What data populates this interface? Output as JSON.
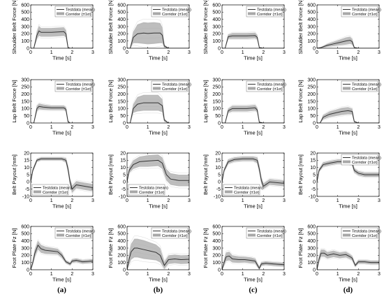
{
  "colors": {
    "mean": "#333333",
    "corridor": "#a8a8a8",
    "individual": "#d9d9d9"
  },
  "legend": {
    "mean": "Testdata (mean)",
    "corridor": "Corridor (±1σ)"
  },
  "column_labels": [
    "(a)",
    "(b)",
    "(c)",
    "(d)"
  ],
  "chart_data": [
    {
      "type": "line",
      "row": 0,
      "col": 0,
      "xlabel": "Time [s]",
      "ylabel": "Shoulder Belt Force [N]",
      "xlim": [
        0,
        3
      ],
      "ylim": [
        0,
        600
      ],
      "xticks": [
        0,
        1,
        2,
        3
      ],
      "yticks": [
        0,
        100,
        200,
        300,
        400,
        500,
        600
      ],
      "legend_position": "top-right",
      "x": [
        0,
        0.15,
        0.3,
        0.4,
        0.5,
        0.7,
        1.0,
        1.3,
        1.6,
        1.7,
        1.8,
        1.9,
        2.2,
        3
      ],
      "mean": [
        0,
        0,
        180,
        240,
        220,
        220,
        220,
        225,
        230,
        200,
        10,
        0,
        0,
        0
      ],
      "sd": [
        0,
        0,
        50,
        70,
        60,
        60,
        60,
        60,
        60,
        50,
        10,
        0,
        0,
        0
      ]
    },
    {
      "type": "line",
      "row": 0,
      "col": 1,
      "xlabel": "Time [s]",
      "ylabel": "Shoulder Belt Force [N]",
      "xlim": [
        0,
        3
      ],
      "ylim": [
        0,
        600
      ],
      "xticks": [
        0,
        1,
        2,
        3
      ],
      "yticks": [
        0,
        100,
        200,
        300,
        400,
        500,
        600
      ],
      "legend_position": "top-right",
      "x": [
        0,
        0.15,
        0.3,
        0.5,
        0.8,
        1.0,
        1.3,
        1.6,
        1.7,
        1.8,
        2.0,
        3
      ],
      "mean": [
        0,
        0,
        150,
        200,
        210,
        205,
        210,
        210,
        180,
        30,
        0,
        0
      ],
      "sd": [
        0,
        0,
        80,
        130,
        150,
        150,
        150,
        140,
        110,
        20,
        0,
        0
      ]
    },
    {
      "type": "line",
      "row": 0,
      "col": 2,
      "xlabel": "Time [s]",
      "ylabel": "Shoulder Belt Force [N]",
      "xlim": [
        0,
        3
      ],
      "ylim": [
        0,
        600
      ],
      "xticks": [
        0,
        1,
        2,
        3
      ],
      "yticks": [
        0,
        100,
        200,
        300,
        400,
        500,
        600
      ],
      "legend_position": "top-right",
      "x": [
        0,
        0.15,
        0.3,
        0.5,
        0.8,
        1.2,
        1.6,
        1.7,
        1.8,
        2.0,
        3
      ],
      "mean": [
        0,
        0,
        160,
        170,
        170,
        170,
        175,
        150,
        10,
        0,
        0
      ],
      "sd": [
        0,
        0,
        30,
        40,
        40,
        40,
        40,
        30,
        5,
        0,
        0
      ]
    },
    {
      "type": "line",
      "row": 0,
      "col": 3,
      "xlabel": "Time [s]",
      "ylabel": "Shoulder Belt Force [N]",
      "xlim": [
        0,
        3
      ],
      "ylim": [
        0,
        600
      ],
      "xticks": [
        0,
        1,
        2,
        3
      ],
      "yticks": [
        0,
        100,
        200,
        300,
        400,
        500,
        600
      ],
      "legend_position": "top-right",
      "x": [
        0,
        0.2,
        0.5,
        0.8,
        1.1,
        1.4,
        1.6,
        1.7,
        1.8,
        2.0,
        3
      ],
      "mean": [
        0,
        10,
        40,
        60,
        80,
        100,
        110,
        90,
        10,
        0,
        0
      ],
      "sd": [
        0,
        5,
        20,
        30,
        40,
        50,
        50,
        40,
        5,
        0,
        0
      ]
    },
    {
      "type": "line",
      "row": 1,
      "col": 0,
      "xlabel": "Time [s]",
      "ylabel": "Lap Belt Force [N]",
      "xlim": [
        0,
        3
      ],
      "ylim": [
        0,
        300
      ],
      "xticks": [
        0,
        1,
        2,
        3
      ],
      "yticks": [
        0,
        50,
        100,
        150,
        200,
        250,
        300
      ],
      "legend_position": "top-right",
      "x": [
        0,
        0.15,
        0.3,
        0.4,
        0.6,
        1.0,
        1.4,
        1.6,
        1.7,
        1.8,
        1.9,
        2.2,
        3
      ],
      "mean": [
        0,
        0,
        100,
        115,
        110,
        105,
        105,
        105,
        95,
        10,
        0,
        0,
        0
      ],
      "sd": [
        0,
        0,
        20,
        20,
        18,
        15,
        15,
        15,
        15,
        8,
        0,
        0,
        0
      ]
    },
    {
      "type": "line",
      "row": 1,
      "col": 1,
      "xlabel": "Time [s]",
      "ylabel": "Lap Belt Force [N]",
      "xlim": [
        0,
        3
      ],
      "ylim": [
        0,
        300
      ],
      "xticks": [
        0,
        1,
        2,
        3
      ],
      "yticks": [
        0,
        50,
        100,
        150,
        200,
        250,
        300
      ],
      "legend_position": "top-right",
      "x": [
        0,
        0.15,
        0.3,
        0.5,
        0.8,
        1.2,
        1.5,
        1.7,
        1.8,
        2.0,
        3
      ],
      "mean": [
        0,
        0,
        100,
        130,
        140,
        140,
        140,
        120,
        20,
        0,
        0
      ],
      "sd": [
        0,
        0,
        30,
        50,
        55,
        55,
        55,
        45,
        10,
        0,
        0
      ]
    },
    {
      "type": "line",
      "row": 1,
      "col": 2,
      "xlabel": "Time [s]",
      "ylabel": "Lap Belt Force [N]",
      "xlim": [
        0,
        3
      ],
      "ylim": [
        0,
        300
      ],
      "xticks": [
        0,
        1,
        2,
        3
      ],
      "yticks": [
        0,
        50,
        100,
        150,
        200,
        250,
        300
      ],
      "legend_position": "top-right",
      "x": [
        0,
        0.15,
        0.3,
        0.5,
        0.8,
        1.2,
        1.6,
        1.7,
        1.8,
        2.0,
        3
      ],
      "mean": [
        0,
        0,
        85,
        100,
        100,
        100,
        105,
        90,
        5,
        0,
        0
      ],
      "sd": [
        0,
        0,
        15,
        20,
        20,
        20,
        20,
        15,
        5,
        0,
        0
      ]
    },
    {
      "type": "line",
      "row": 1,
      "col": 3,
      "xlabel": "Time [s]",
      "ylabel": "Lap Belt Force [N]",
      "xlim": [
        0,
        3
      ],
      "ylim": [
        0,
        300
      ],
      "xticks": [
        0,
        1,
        2,
        3
      ],
      "yticks": [
        0,
        50,
        100,
        150,
        200,
        250,
        300
      ],
      "legend_position": "top-right",
      "x": [
        0,
        0.15,
        0.3,
        0.6,
        0.9,
        1.2,
        1.5,
        1.7,
        1.8,
        2.0,
        3
      ],
      "mean": [
        0,
        0,
        40,
        60,
        70,
        80,
        85,
        80,
        10,
        0,
        0
      ],
      "sd": [
        0,
        0,
        15,
        20,
        22,
        25,
        25,
        20,
        5,
        0,
        0
      ]
    },
    {
      "type": "line",
      "row": 2,
      "col": 0,
      "xlabel": "Time [s]",
      "ylabel": "Belt Payout [mm]",
      "xlim": [
        0,
        3
      ],
      "ylim": [
        -10,
        20
      ],
      "xticks": [
        0,
        1,
        2,
        3
      ],
      "yticks": [
        -10,
        -5,
        0,
        5,
        10,
        15,
        20
      ],
      "legend_position": "bottom-left",
      "x": [
        0,
        0.1,
        0.3,
        0.5,
        1.0,
        1.5,
        1.7,
        1.8,
        1.9,
        2.0,
        2.2,
        2.6,
        3
      ],
      "mean": [
        0,
        8,
        15,
        16,
        16,
        16,
        15,
        9,
        0,
        -5,
        -2,
        -3,
        -4
      ],
      "sd": [
        0,
        1,
        1,
        1,
        1,
        1,
        1.5,
        2,
        2,
        2.5,
        2.5,
        2.5,
        2.5
      ]
    },
    {
      "type": "line",
      "row": 2,
      "col": 1,
      "xlabel": "Time [s]",
      "ylabel": "Belt Payout [mm]",
      "xlim": [
        0,
        3
      ],
      "ylim": [
        -10,
        20
      ],
      "xticks": [
        0,
        1,
        2,
        3
      ],
      "yticks": [
        -10,
        -5,
        0,
        5,
        10,
        15,
        20
      ],
      "legend_position": "bottom-left",
      "x": [
        0,
        0.1,
        0.3,
        0.6,
        1.0,
        1.5,
        1.7,
        1.9,
        2.1,
        2.5,
        3
      ],
      "mean": [
        0,
        8,
        12,
        14,
        14.5,
        15,
        13,
        5,
        2,
        1,
        1
      ],
      "sd": [
        0,
        2,
        3,
        3.5,
        4,
        4,
        4,
        4,
        4,
        4,
        4
      ]
    },
    {
      "type": "line",
      "row": 2,
      "col": 2,
      "xlabel": "Time [s]",
      "ylabel": "Belt Payout [mm]",
      "xlim": [
        0,
        3
      ],
      "ylim": [
        -10,
        20
      ],
      "xticks": [
        0,
        1,
        2,
        3
      ],
      "yticks": [
        -10,
        -5,
        0,
        5,
        10,
        15,
        20
      ],
      "legend_position": "bottom-left",
      "x": [
        0,
        0.1,
        0.3,
        0.6,
        1.0,
        1.5,
        1.7,
        1.8,
        1.9,
        2.0,
        2.3,
        3
      ],
      "mean": [
        0,
        8,
        14,
        15.5,
        16,
        16,
        15,
        9,
        1,
        -3,
        0,
        -1
      ],
      "sd": [
        0,
        1,
        1.5,
        1.5,
        1.5,
        1.5,
        2,
        2,
        2,
        2,
        2,
        2
      ]
    },
    {
      "type": "line",
      "row": 2,
      "col": 3,
      "xlabel": "Time [s]",
      "ylabel": "Belt Payout [mm]",
      "xlim": [
        0,
        3
      ],
      "ylim": [
        -10,
        20
      ],
      "xticks": [
        0,
        1,
        2,
        3
      ],
      "yticks": [
        -10,
        -5,
        0,
        5,
        10,
        15,
        20
      ],
      "legend_position": "top-right",
      "x": [
        0,
        0.1,
        0.3,
        0.6,
        1.0,
        1.5,
        1.7,
        1.8,
        2.0,
        2.3,
        3
      ],
      "mean": [
        0,
        8,
        12,
        13,
        14,
        14,
        13,
        8,
        6,
        5,
        5
      ],
      "sd": [
        0,
        1,
        1.5,
        1.5,
        1.5,
        1.5,
        1.5,
        1.5,
        1.5,
        1.5,
        1.5
      ]
    },
    {
      "type": "line",
      "row": 3,
      "col": 0,
      "xlabel": "Time [s]",
      "ylabel": "Foot Plate Fz [N]",
      "xlim": [
        0,
        3
      ],
      "ylim": [
        0,
        600
      ],
      "xticks": [
        0,
        1,
        2,
        3
      ],
      "yticks": [
        0,
        100,
        200,
        300,
        400,
        500,
        600
      ],
      "legend_position": "top-right",
      "x": [
        0,
        0.1,
        0.2,
        0.35,
        0.5,
        0.7,
        1.0,
        1.3,
        1.5,
        1.7,
        1.9,
        2.0,
        2.2,
        2.5,
        3
      ],
      "mean": [
        0,
        100,
        230,
        340,
        290,
        270,
        260,
        250,
        200,
        110,
        80,
        120,
        130,
        110,
        120
      ],
      "sd": [
        0,
        30,
        50,
        60,
        55,
        50,
        45,
        40,
        35,
        20,
        20,
        25,
        25,
        25,
        25
      ]
    },
    {
      "type": "line",
      "row": 3,
      "col": 1,
      "xlabel": "Time [s]",
      "ylabel": "Foot Plate Fz [N]",
      "xlim": [
        0,
        3
      ],
      "ylim": [
        0,
        600
      ],
      "xticks": [
        0,
        1,
        2,
        3
      ],
      "yticks": [
        0,
        100,
        200,
        300,
        400,
        500,
        600
      ],
      "legend_position": "top-right",
      "x": [
        0,
        0.1,
        0.2,
        0.35,
        0.5,
        0.8,
        1.1,
        1.4,
        1.6,
        1.8,
        2.0,
        2.3,
        2.6,
        3
      ],
      "mean": [
        0,
        150,
        250,
        300,
        300,
        280,
        260,
        240,
        200,
        60,
        140,
        150,
        140,
        145
      ],
      "sd": [
        0,
        80,
        110,
        130,
        130,
        130,
        120,
        110,
        100,
        50,
        60,
        60,
        60,
        60
      ]
    },
    {
      "type": "line",
      "row": 3,
      "col": 2,
      "xlabel": "Time [s]",
      "ylabel": "Foot Plate Fz [N]",
      "xlim": [
        0,
        3
      ],
      "ylim": [
        0,
        600
      ],
      "xticks": [
        0,
        1,
        2,
        3
      ],
      "yticks": [
        0,
        100,
        200,
        300,
        400,
        500,
        600
      ],
      "legend_position": "top-right",
      "x": [
        0,
        0.1,
        0.2,
        0.35,
        0.5,
        0.8,
        1.1,
        1.4,
        1.6,
        1.8,
        1.9,
        2.1,
        2.5,
        3
      ],
      "mean": [
        0,
        100,
        180,
        190,
        150,
        140,
        140,
        130,
        120,
        20,
        80,
        90,
        80,
        70
      ],
      "sd": [
        0,
        40,
        60,
        60,
        50,
        45,
        40,
        40,
        35,
        20,
        25,
        25,
        25,
        25
      ]
    },
    {
      "type": "line",
      "row": 3,
      "col": 3,
      "xlabel": "Time [s]",
      "ylabel": "Foot Plate Fz [N]",
      "xlim": [
        0,
        3
      ],
      "ylim": [
        0,
        600
      ],
      "xticks": [
        0,
        1,
        2,
        3
      ],
      "yticks": [
        0,
        100,
        200,
        300,
        400,
        500,
        600
      ],
      "legend_position": "top-right",
      "x": [
        0,
        0.1,
        0.2,
        0.35,
        0.5,
        0.8,
        1.1,
        1.4,
        1.6,
        1.7,
        1.85,
        2.0,
        2.3,
        2.6,
        3
      ],
      "mean": [
        0,
        150,
        230,
        230,
        200,
        220,
        200,
        210,
        180,
        160,
        60,
        110,
        110,
        100,
        100
      ],
      "sd": [
        0,
        40,
        50,
        50,
        45,
        45,
        40,
        40,
        35,
        30,
        20,
        25,
        25,
        25,
        25
      ]
    }
  ]
}
